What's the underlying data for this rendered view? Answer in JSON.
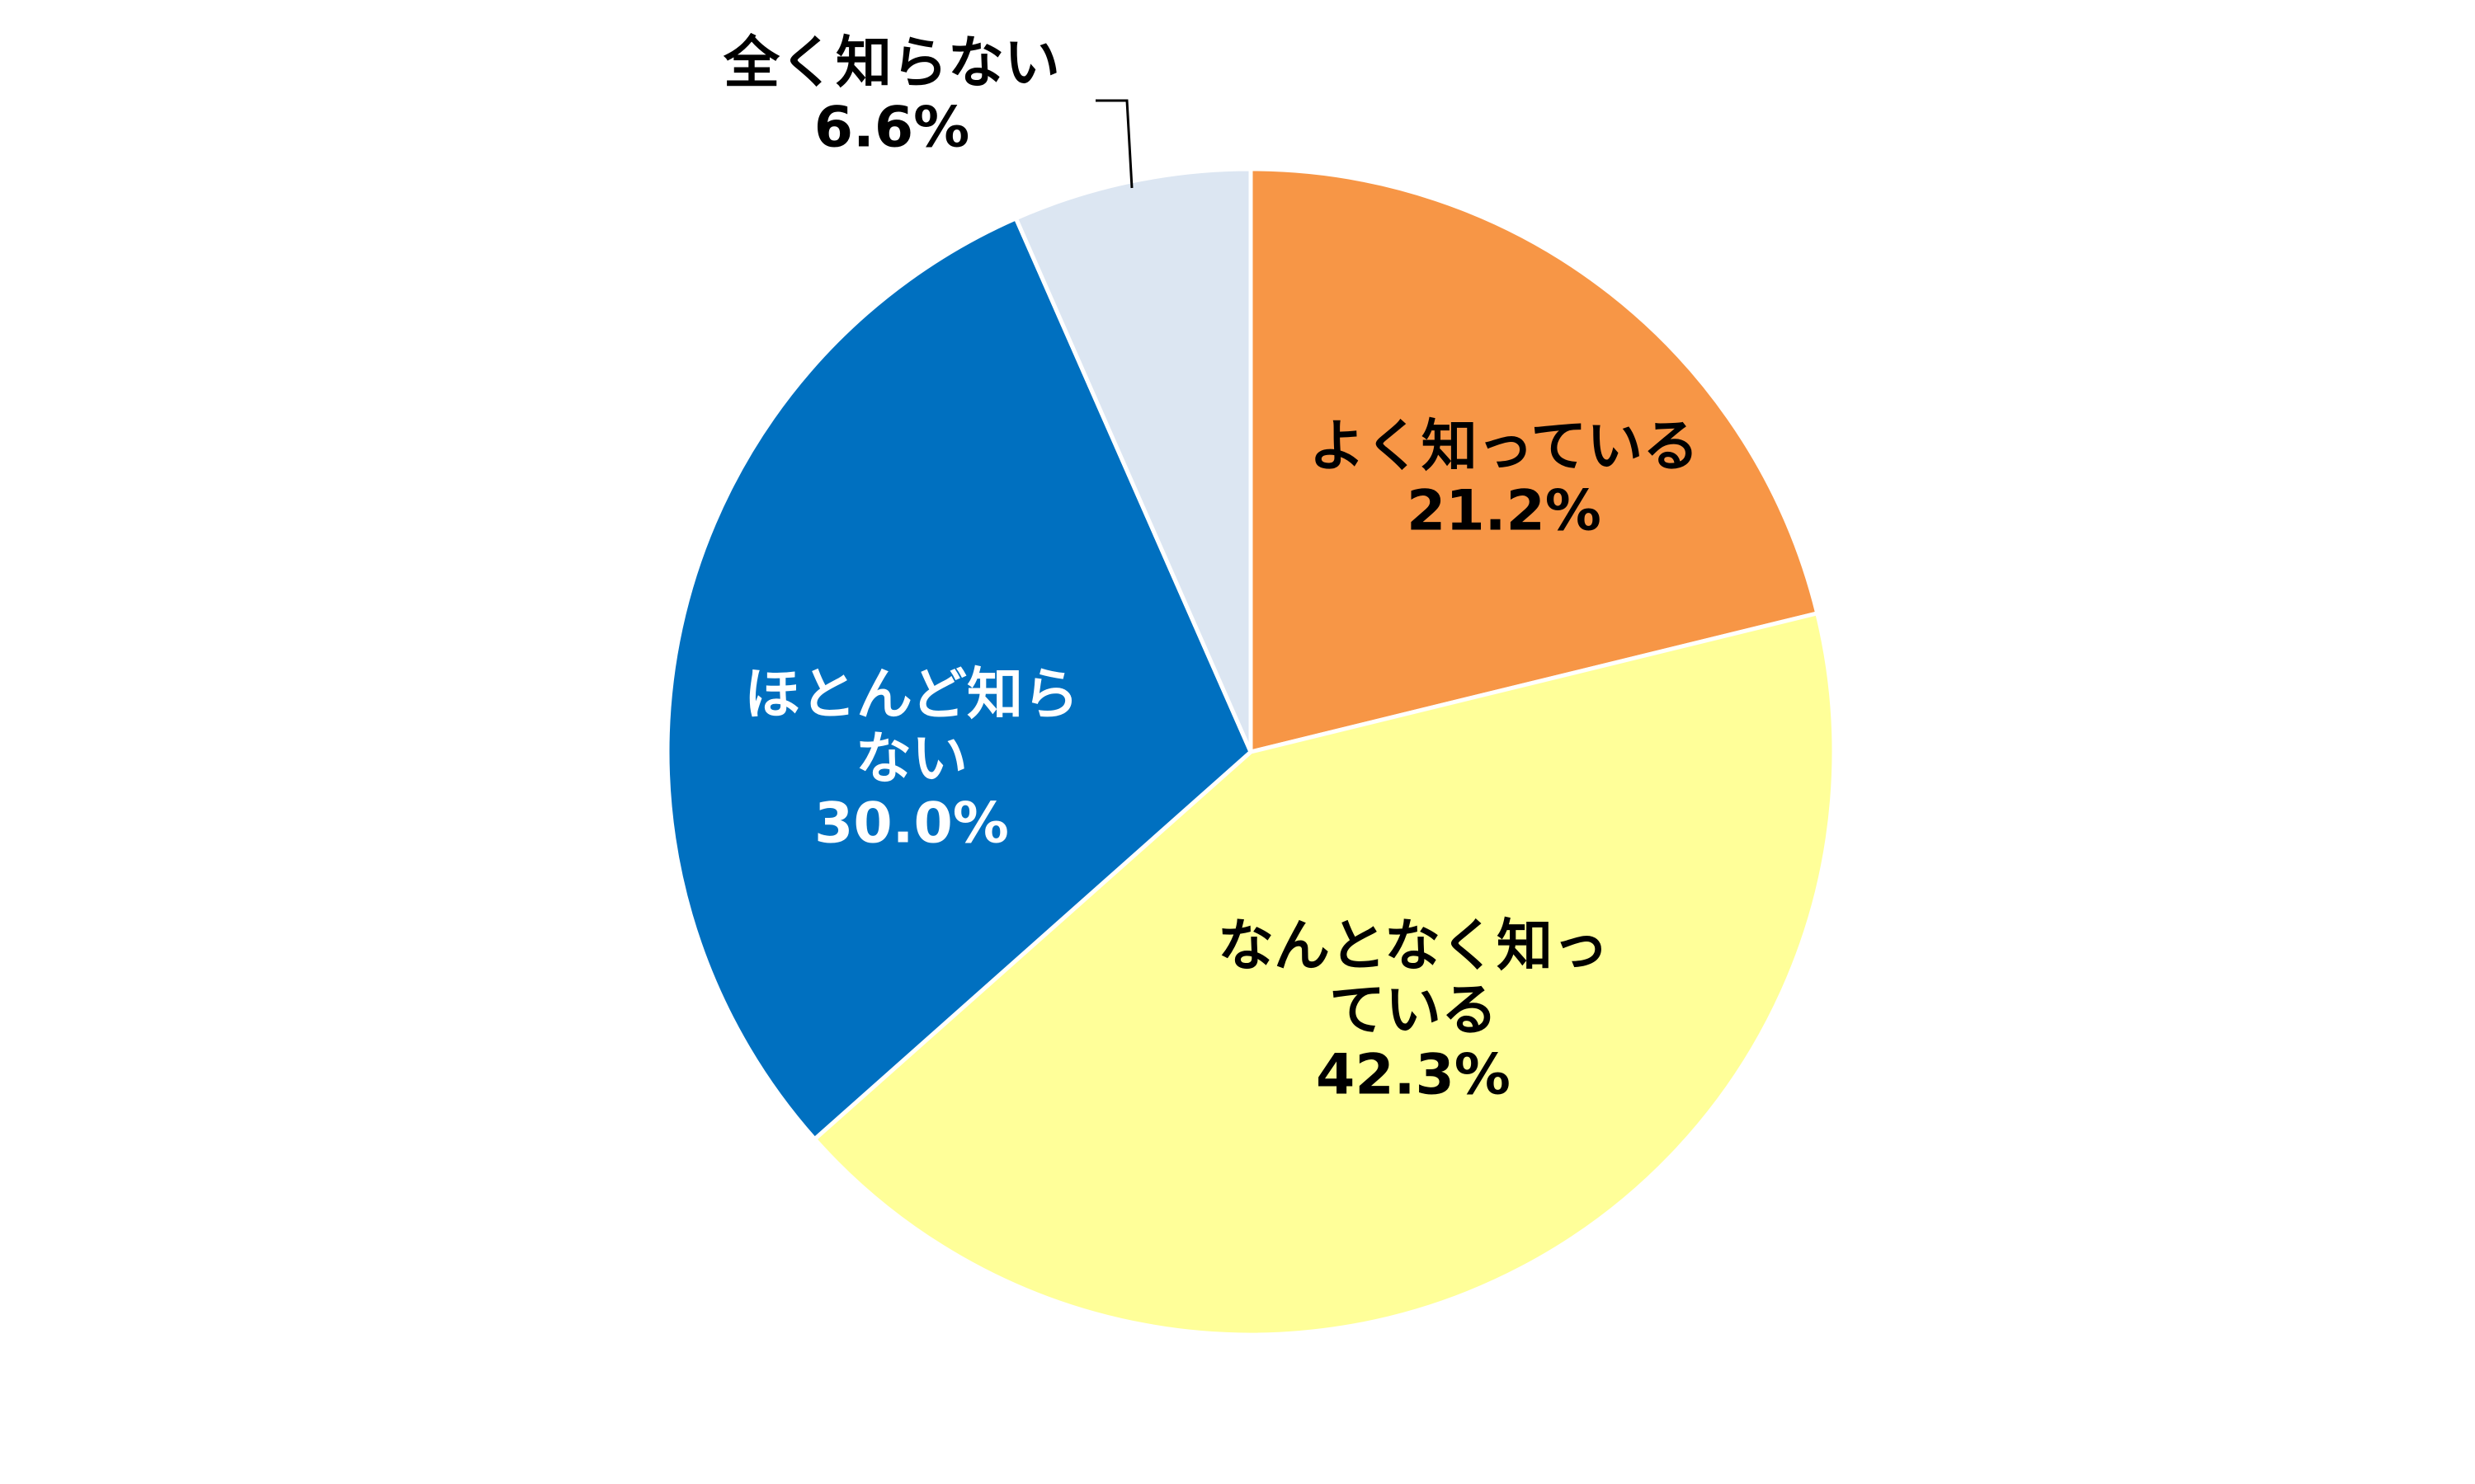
{
  "chart_data": {
    "type": "pie",
    "title": "",
    "start_angle_deg": 0,
    "direction": "clockwise",
    "slices": [
      {
        "label_lines": [
          "よく知っている"
        ],
        "value": 21.2,
        "value_text": "21.2%",
        "color": "#F79646",
        "text_color": "#000000"
      },
      {
        "label_lines": [
          "なんとなく知っ",
          "ている"
        ],
        "value": 42.3,
        "value_text": "42.3%",
        "color": "#FFFF99",
        "text_color": "#000000"
      },
      {
        "label_lines": [
          "ほとんど知ら",
          "ない"
        ],
        "value": 30.0,
        "value_text": "30.0%",
        "color": "#0070C0",
        "text_color": "#FFFFFF"
      },
      {
        "label_lines": [
          "全く知らない"
        ],
        "value": 6.6,
        "value_text": "6.6%",
        "color": "#DCE6F2",
        "text_color": "#000000",
        "leader_line": true
      }
    ],
    "legend": "none",
    "slice_border_color": "#FFFFFF"
  }
}
